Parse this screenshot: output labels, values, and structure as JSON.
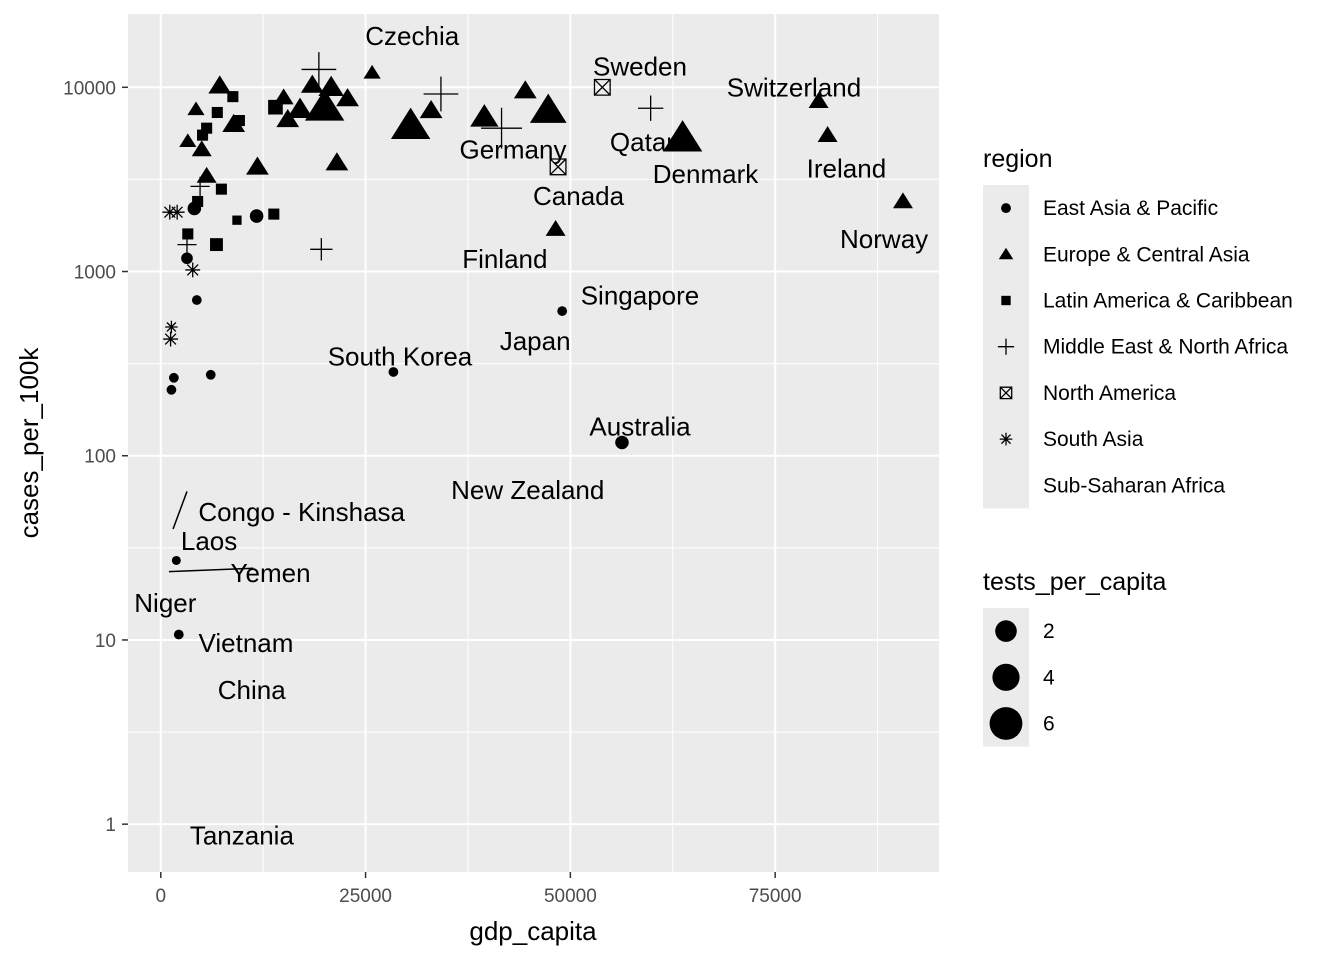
{
  "chart_data": {
    "type": "scatter",
    "xlabel": "gdp_capita",
    "ylabel": "cases_per_100k",
    "xlim": [
      -4000,
      95000
    ],
    "ylim": [
      0.55,
      25000
    ],
    "y_scale": "log10",
    "x_ticks": [
      0,
      25000,
      50000,
      75000
    ],
    "y_ticks": [
      1,
      10,
      100,
      1000,
      10000
    ],
    "grid": true,
    "legend_position": "right",
    "legends": {
      "region": {
        "title": "region",
        "entries": [
          {
            "label": "East Asia & Pacific",
            "shape": "circle"
          },
          {
            "label": "Europe & Central Asia",
            "shape": "triangle"
          },
          {
            "label": "Latin America & Caribbean",
            "shape": "square"
          },
          {
            "label": "Middle East & North Africa",
            "shape": "plus"
          },
          {
            "label": "North America",
            "shape": "boxx"
          },
          {
            "label": "South Asia",
            "shape": "asterisk"
          },
          {
            "label": "Sub-Saharan Africa",
            "shape": "none"
          }
        ]
      },
      "size": {
        "title": "tests_per_capita",
        "entries": [
          {
            "label": "2",
            "value": 2
          },
          {
            "label": "4",
            "value": 4
          },
          {
            "label": "6",
            "value": 6
          }
        ]
      }
    },
    "points": [
      {
        "x": 19300,
        "y": 12500,
        "region": "Middle East & North Africa",
        "size": 4.5
      },
      {
        "x": 25800,
        "y": 12000,
        "region": "Europe & Central Asia",
        "size": 2
      },
      {
        "x": 7200,
        "y": 10200,
        "region": "Europe & Central Asia",
        "size": 3
      },
      {
        "x": 8800,
        "y": 8900,
        "region": "Latin America & Caribbean",
        "size": 2
      },
      {
        "x": 4300,
        "y": 7600,
        "region": "Europe & Central Asia",
        "size": 2
      },
      {
        "x": 6900,
        "y": 7300,
        "region": "Latin America & Caribbean",
        "size": 2
      },
      {
        "x": 9600,
        "y": 6600,
        "region": "Latin America & Caribbean",
        "size": 2
      },
      {
        "x": 5600,
        "y": 6000,
        "region": "Latin America & Caribbean",
        "size": 2
      },
      {
        "x": 8900,
        "y": 6300,
        "region": "Europe & Central Asia",
        "size": 3
      },
      {
        "x": 5100,
        "y": 5500,
        "region": "Latin America & Caribbean",
        "size": 2
      },
      {
        "x": 3300,
        "y": 5100,
        "region": "Europe & Central Asia",
        "size": 2
      },
      {
        "x": 5000,
        "y": 4600,
        "region": "Europe & Central Asia",
        "size": 2.5
      },
      {
        "x": 14000,
        "y": 7800,
        "region": "Latin America & Caribbean",
        "size": 3
      },
      {
        "x": 15000,
        "y": 8800,
        "region": "Europe & Central Asia",
        "size": 2.5
      },
      {
        "x": 15500,
        "y": 6700,
        "region": "Europe & Central Asia",
        "size": 3
      },
      {
        "x": 17000,
        "y": 7600,
        "region": "Europe & Central Asia",
        "size": 3.5
      },
      {
        "x": 18500,
        "y": 10300,
        "region": "Europe & Central Asia",
        "size": 3
      },
      {
        "x": 20800,
        "y": 10000,
        "region": "Europe & Central Asia",
        "size": 3.5
      },
      {
        "x": 20000,
        "y": 7800,
        "region": "Europe & Central Asia",
        "size": 6
      },
      {
        "x": 22800,
        "y": 8700,
        "region": "Europe & Central Asia",
        "size": 3
      },
      {
        "x": 21500,
        "y": 3900,
        "region": "Europe & Central Asia",
        "size": 3
      },
      {
        "x": 11800,
        "y": 3700,
        "region": "Europe & Central Asia",
        "size": 3
      },
      {
        "x": 5600,
        "y": 3300,
        "region": "Europe & Central Asia",
        "size": 2.5
      },
      {
        "x": 7400,
        "y": 2800,
        "region": "Latin America & Caribbean",
        "size": 2
      },
      {
        "x": 4800,
        "y": 2900,
        "region": "Middle East & North Africa",
        "size": 2
      },
      {
        "x": 4500,
        "y": 2400,
        "region": "Latin America & Caribbean",
        "size": 2
      },
      {
        "x": 4100,
        "y": 2200,
        "region": "East Asia & Pacific",
        "size": 2.5
      },
      {
        "x": 11700,
        "y": 2000,
        "region": "East Asia & Pacific",
        "size": 2.5
      },
      {
        "x": 13800,
        "y": 2050,
        "region": "Latin America & Caribbean",
        "size": 2
      },
      {
        "x": 9300,
        "y": 1900,
        "region": "Latin America & Caribbean",
        "size": 1.5
      },
      {
        "x": 3300,
        "y": 1600,
        "region": "Latin America & Caribbean",
        "size": 2
      },
      {
        "x": 3200,
        "y": 1400,
        "region": "Middle East & North Africa",
        "size": 2
      },
      {
        "x": 6800,
        "y": 1400,
        "region": "Latin America & Caribbean",
        "size": 2.5
      },
      {
        "x": 3200,
        "y": 1180,
        "region": "East Asia & Pacific",
        "size": 2
      },
      {
        "x": 19600,
        "y": 1320,
        "region": "Middle East & North Africa",
        "size": 2.5
      },
      {
        "x": 1100,
        "y": 2100,
        "region": "South Asia",
        "size": 2
      },
      {
        "x": 2000,
        "y": 2100,
        "region": "South Asia",
        "size": 2
      },
      {
        "x": 3900,
        "y": 1020,
        "region": "South Asia",
        "size": 2
      },
      {
        "x": 4400,
        "y": 700,
        "region": "East Asia & Pacific",
        "size": 1.5
      },
      {
        "x": 1300,
        "y": 500,
        "region": "South Asia",
        "size": 1.5
      },
      {
        "x": 1200,
        "y": 430,
        "region": "South Asia",
        "size": 2
      },
      {
        "x": 1600,
        "y": 265,
        "region": "East Asia & Pacific",
        "size": 1.5
      },
      {
        "x": 6100,
        "y": 275,
        "region": "East Asia & Pacific",
        "size": 1.5
      },
      {
        "x": 1300,
        "y": 228,
        "region": "East Asia & Pacific",
        "size": 1.5
      },
      {
        "x": 1900,
        "y": 27,
        "region": "East Asia & Pacific",
        "size": 1.3
      },
      {
        "x": 2200,
        "y": 10.7,
        "region": "East Asia & Pacific",
        "size": 1.5
      },
      {
        "x": 30500,
        "y": 6200,
        "region": "Europe & Central Asia",
        "size": 6
      },
      {
        "x": 33000,
        "y": 7500,
        "region": "Europe & Central Asia",
        "size": 3
      },
      {
        "x": 34200,
        "y": 9200,
        "region": "Middle East & North Africa",
        "size": 4.5
      },
      {
        "x": 39500,
        "y": 6900,
        "region": "Europe & Central Asia",
        "size": 4
      },
      {
        "x": 41600,
        "y": 6000,
        "region": "Middle East & North Africa",
        "size": 5.5
      },
      {
        "x": 44500,
        "y": 9600,
        "region": "Europe & Central Asia",
        "size": 3
      },
      {
        "x": 47300,
        "y": 7500,
        "region": "Europe & Central Asia",
        "size": 5.5
      },
      {
        "x": 48200,
        "y": 1700,
        "region": "Europe & Central Asia",
        "size": 2.5
      },
      {
        "x": 53900,
        "y": 10000,
        "region": "North America",
        "size": 2.5
      },
      {
        "x": 48500,
        "y": 3700,
        "region": "North America",
        "size": 2.5
      },
      {
        "x": 49000,
        "y": 610,
        "region": "East Asia & Pacific",
        "size": 1.5
      },
      {
        "x": 28400,
        "y": 285,
        "region": "East Asia & Pacific",
        "size": 1.5
      },
      {
        "x": 56300,
        "y": 118,
        "region": "East Asia & Pacific",
        "size": 2.5
      },
      {
        "x": 59800,
        "y": 7700,
        "region": "Middle East & North Africa",
        "size": 3
      },
      {
        "x": 63700,
        "y": 5300,
        "region": "Europe & Central Asia",
        "size": 6
      },
      {
        "x": 80300,
        "y": 8400,
        "region": "Europe & Central Asia",
        "size": 2.5
      },
      {
        "x": 81400,
        "y": 5500,
        "region": "Europe & Central Asia",
        "size": 2.5
      },
      {
        "x": 90600,
        "y": 2400,
        "region": "Europe & Central Asia",
        "size": 2.5
      }
    ],
    "labels": [
      {
        "text": "Czechia",
        "x": 30700,
        "y": 19000
      },
      {
        "text": "Sweden",
        "x": 58500,
        "y": 13000
      },
      {
        "text": "Switzerland",
        "x": 77300,
        "y": 10000
      },
      {
        "text": "Qatar",
        "x": 58800,
        "y": 5050
      },
      {
        "text": "Germany",
        "x": 43000,
        "y": 4600
      },
      {
        "text": "Denmark",
        "x": 66500,
        "y": 3380
      },
      {
        "text": "Ireland",
        "x": 83700,
        "y": 3630
      },
      {
        "text": "Canada",
        "x": 51000,
        "y": 2570
      },
      {
        "text": "Norway",
        "x": 88300,
        "y": 1500
      },
      {
        "text": "Finland",
        "x": 42000,
        "y": 1170
      },
      {
        "text": "Singapore",
        "x": 58500,
        "y": 740
      },
      {
        "text": "Japan",
        "x": 45700,
        "y": 420
      },
      {
        "text": "South Korea",
        "x": 29200,
        "y": 346
      },
      {
        "text": "Australia",
        "x": 58500,
        "y": 144
      },
      {
        "text": "New Zealand",
        "x": 44800,
        "y": 65
      },
      {
        "text": "Congo - Kinshasa",
        "x": 17200,
        "y": 49.5
      },
      {
        "text": "Laos",
        "x": 5900,
        "y": 34.5
      },
      {
        "text": "Yemen",
        "x": 13400,
        "y": 23.1
      },
      {
        "text": "Niger",
        "x": 560,
        "y": 15.9
      },
      {
        "text": "Vietnam",
        "x": 10400,
        "y": 9.6
      },
      {
        "text": "China",
        "x": 11100,
        "y": 5.35
      },
      {
        "text": "Tanzania",
        "x": 9900,
        "y": 0.87
      }
    ],
    "segments": [
      {
        "x1": 1500,
        "y1": 40,
        "x2": 3200,
        "y2": 64
      },
      {
        "x1": 1000,
        "y1": 23.5,
        "x2": 11300,
        "y2": 24.5
      }
    ]
  }
}
